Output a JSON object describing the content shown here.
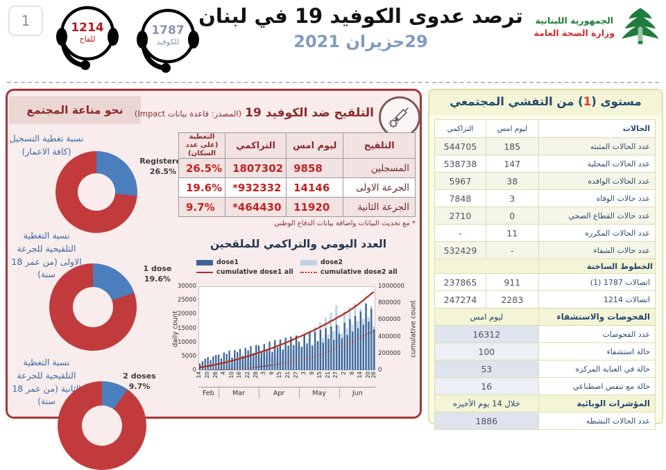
{
  "colors": {
    "accent_red": "#a93438",
    "panel_pink_bg": "#f8ecec",
    "panel_pink_band": "#ecd6d4",
    "maroon": "#8b2b2b",
    "value_red": "#c32222",
    "vax_row_pink": "#f2e3e2",
    "donut_red": "#c23b3c",
    "donut_blue": "#4a7ebc",
    "bar_dose1": "#3e6596",
    "bar_dose2": "#bfd3e8",
    "line_red": "#b02c20",
    "panel_yellow_bg": "#fbfbe9",
    "panel_yellow_border": "#e0e0a8",
    "section_yellow": "#f4f4d6",
    "khaki_border": "#dcdcb0",
    "navy": "#24486e",
    "num_gray": "#4a545e",
    "blue_label": "#3a6ba3",
    "date_blue": "#7f9dbd",
    "hotline_red": "#b71c22",
    "hotline_gray": "#8a93ab",
    "logo_green": "#1e7c3c",
    "logo_red": "#cf2e2e",
    "shade_blue": "#dfe3ed",
    "shade_blue_light": "#eceff5"
  },
  "header": {
    "page_number": "1",
    "hotline_vaccine": {
      "number": "1214",
      "label": "للقاح"
    },
    "hotline_covid": {
      "number": "1787",
      "label": "للكوفيد"
    },
    "title": "ترصد عدوى الكوفيد 19 في لبنان",
    "date": "29حزيران 2021",
    "ministry": {
      "line1": "الجمهورية اللبنانية",
      "line2": "وزارة الصحة العامة"
    }
  },
  "immunity_panel": {
    "header": "نحو مناعة المجتمع",
    "donuts": [
      {
        "label": "نسبة تغطية التسجيل (كافة الاعمار)",
        "series": "Registered",
        "pct": 26.5,
        "pct_label": "26.5%"
      },
      {
        "label": "نسبة التغطية التلقيحية للجرعة الاولى (من عمر 18 سنة)",
        "series": "1 dose",
        "pct": 19.6,
        "pct_label": "19.6%"
      },
      {
        "label": "نسبة التغطية التلقيحية للجرعة الثانية (من عمر 18 سنة)",
        "series": "2 doses",
        "pct": 9.7,
        "pct_label": "9.7%"
      }
    ]
  },
  "vaccination": {
    "title": "التلقيح ضد الكوفيد 19",
    "source": "(المصدر: قاعدة بيانات Impact)",
    "table": {
      "headers": [
        "التلقيح",
        "ليوم امس",
        "التراكمي",
        "التغطية (على عدد السكان)"
      ],
      "rows": [
        [
          "المسجلين",
          "9858",
          "1807302",
          "26.5%"
        ],
        [
          "الجرعة الاولى",
          "14146",
          "*932332",
          "19.6%"
        ],
        [
          "الجرعة الثانية",
          "11920",
          "*464430",
          "9.7%"
        ]
      ]
    },
    "footnote": "* مع تحديث البيانات واضافة بيانات الدفاع الوطني"
  },
  "chart_data": [
    {
      "type": "pie",
      "title": "نحو مناعة المجتمع",
      "donuts": [
        {
          "name": "Registered",
          "value_pct": 26.5,
          "rest_pct": 73.5,
          "colors": {
            "slice": "#4a7ebc",
            "rest": "#c23b3c"
          }
        },
        {
          "name": "1 dose",
          "value_pct": 19.6,
          "rest_pct": 80.4,
          "colors": {
            "slice": "#4a7ebc",
            "rest": "#c23b3c"
          }
        },
        {
          "name": "2 doses",
          "value_pct": 9.7,
          "rest_pct": 90.3,
          "colors": {
            "slice": "#4a7ebc",
            "rest": "#c23b3c"
          }
        }
      ]
    },
    {
      "type": "bar",
      "title": "العدد اليومي والتراكمي للملقحين",
      "ylabel_left": "daily count",
      "ylabel_right": "cumulative count",
      "ylim_left": [
        0,
        30000
      ],
      "yticks_left": [
        30000,
        25000,
        20000,
        15000,
        10000,
        5000,
        0
      ],
      "ylim_right": [
        0,
        1000000
      ],
      "yticks_right": [
        1000000,
        800000,
        600000,
        400000,
        200000,
        0
      ],
      "x_tick_labels": [
        "14",
        "20",
        "26",
        "4",
        "10",
        "16",
        "22",
        "28",
        "3",
        "9",
        "15",
        "21",
        "27",
        "3",
        "9",
        "15",
        "21",
        "27",
        "2",
        "8",
        "14",
        "20",
        "26"
      ],
      "x_tick_indices": [
        0,
        3,
        6,
        9,
        12,
        15,
        18,
        21,
        24,
        27,
        30,
        33,
        36,
        39,
        42,
        45,
        48,
        51,
        54,
        57,
        60,
        63,
        65
      ],
      "months": [
        {
          "label": "Feb",
          "width_pct": 11.36
        },
        {
          "label": "Mar",
          "width_pct": 22.73
        },
        {
          "label": "Apr",
          "width_pct": 22.73
        },
        {
          "label": "May",
          "width_pct": 22.73
        },
        {
          "label": "Jun",
          "width_pct": 20.45
        }
      ],
      "legend": [
        {
          "label": "dose1",
          "swatch": "bar1"
        },
        {
          "label": "dose2",
          "swatch": "bar2"
        },
        {
          "label": "cumulative dose1 all",
          "swatch": "line"
        },
        {
          "label": "cumulative dose2 all",
          "swatch": "dot"
        }
      ],
      "series": [
        {
          "name": "dose1",
          "type": "bar",
          "values": [
            2400,
            3200,
            4100,
            4700,
            3600,
            5000,
            5400,
            5600,
            4200,
            6300,
            5800,
            7000,
            4500,
            7200,
            6500,
            7600,
            5200,
            8000,
            7100,
            8600,
            6200,
            9000,
            8800,
            6800,
            9400,
            7500,
            10200,
            6600,
            10800,
            8200,
            11000,
            7400,
            11600,
            8800,
            12000,
            9000,
            12400,
            10200,
            8400,
            12800,
            9600,
            13400,
            8800,
            13800,
            10400,
            14400,
            9800,
            15000,
            11200,
            15600,
            10800,
            16200,
            13000,
            11400,
            17000,
            12600,
            18200,
            13800,
            19400,
            15000,
            21000,
            16200,
            23800,
            17400,
            22000,
            14600
          ]
        },
        {
          "name": "dose2",
          "type": "bar",
          "values": [
            0,
            0,
            0,
            0,
            0,
            0,
            0,
            800,
            1500,
            2200,
            1800,
            2800,
            2000,
            3400,
            2600,
            4000,
            3000,
            4600,
            3400,
            5200,
            3800,
            5800,
            5400,
            4200,
            6400,
            4800,
            7200,
            5000,
            8000,
            5600,
            8800,
            6200,
            9600,
            6800,
            10400,
            7400,
            11200,
            9000,
            7600,
            12400,
            8400,
            13800,
            9200,
            15400,
            10400,
            17000,
            11600,
            18800,
            12800,
            20600,
            14000,
            23200,
            16000,
            13000,
            21000,
            15000,
            22600,
            16400,
            23800,
            17600,
            22000,
            18400,
            24200,
            19000,
            23000,
            15800
          ]
        },
        {
          "name": "cumulative dose1 all",
          "type": "line",
          "style": "solid",
          "start": 30000,
          "final": 932332
        },
        {
          "name": "cumulative dose2 all",
          "type": "line",
          "style": "dotted",
          "start": 0,
          "final": 464430
        }
      ]
    }
  ],
  "outbreak_panel": {
    "header": {
      "prefix": "مستوى (",
      "level": "1",
      "suffix": ") من التفشي المجتمعي"
    },
    "table_headers": {
      "cases": "الحالات",
      "yesterday": "ليوم امس",
      "cumulative": "التراكمي"
    },
    "rows": [
      {
        "type": "data",
        "label": "عدد الحالات المثبته",
        "yesterday": "185",
        "cumulative": "544705",
        "shade": true
      },
      {
        "type": "data",
        "label": "عدد الحالات المحلية",
        "yesterday": "147",
        "cumulative": "538738",
        "shade": false
      },
      {
        "type": "data",
        "label": "عدد الحالات الوافده",
        "yesterday": "38",
        "cumulative": "5967",
        "shade": true
      },
      {
        "type": "data",
        "label": "عدد حالات الوفاه",
        "yesterday": "3",
        "cumulative": "7848",
        "shade": false
      },
      {
        "type": "data",
        "label": "عدد حالات القطاع الصحي",
        "yesterday": "0",
        "cumulative": "2710",
        "shade": true
      },
      {
        "type": "data",
        "label": "عدد الحالات المكرره",
        "yesterday": "11",
        "cumulative": "-",
        "shade": false
      },
      {
        "type": "data",
        "label": "عدد حالات الشفاء",
        "yesterday": "-",
        "cumulative": "532429",
        "shade": true
      },
      {
        "type": "section",
        "label": "الخطوط الساخنة"
      },
      {
        "type": "data",
        "label": "اتصالات 1787 (1)",
        "yesterday": "911",
        "cumulative": "237865",
        "shade": false
      },
      {
        "type": "data",
        "label": "اتصالات 1214",
        "yesterday": "2283",
        "cumulative": "247274",
        "shade": false
      },
      {
        "type": "section2",
        "label": "الفحوصات والاستشفاء",
        "value": "ليوم امس"
      },
      {
        "type": "spanrow",
        "label": "عدد الفحوصات",
        "value": "16312",
        "vshade": "vblue"
      },
      {
        "type": "spanrow",
        "label": "حالة استشفاء",
        "value": "100",
        "vshade": "vlight"
      },
      {
        "type": "spanrow",
        "label": "حالة في العناية المركزه",
        "value": "53",
        "vshade": "vblue"
      },
      {
        "type": "spanrow",
        "label": "حالة مع تنفس اصطناعي",
        "value": "16",
        "vshade": "vlight"
      },
      {
        "type": "section2",
        "label": "المؤشرات الوبائية",
        "value": "خلال 14 يوم الأخيره"
      },
      {
        "type": "spanrow",
        "label": "عدد الحالات النشطه",
        "value": "1886",
        "vshade": "vblue"
      }
    ]
  }
}
